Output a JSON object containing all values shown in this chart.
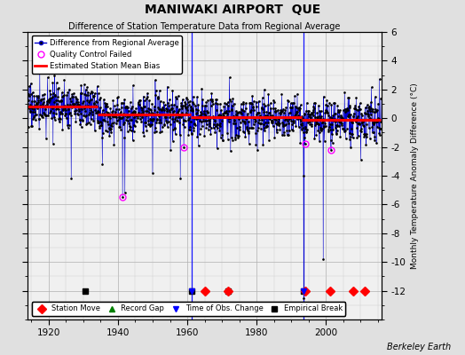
{
  "title": "MANIWAKI AIRPORT  QUE",
  "subtitle": "Difference of Station Temperature Data from Regional Average",
  "ylabel": "Monthly Temperature Anomaly Difference (°C)",
  "xlim": [
    1914,
    2016
  ],
  "ylim": [
    -14,
    6
  ],
  "yticks": [
    -12,
    -10,
    -8,
    -6,
    -4,
    -2,
    0,
    2,
    4,
    6
  ],
  "xticks": [
    1920,
    1940,
    1960,
    1980,
    2000
  ],
  "bg_color": "#e0e0e0",
  "plot_bg_color": "#f0f0f0",
  "line_color": "#0000cc",
  "bias_color": "#ff0000",
  "marker_color": "#000000",
  "qc_color": "#ff00ff",
  "station_move_color": "#ff0000",
  "record_gap_color": "#008000",
  "tobs_color": "#0000ff",
  "emp_break_color": "#000000",
  "seed": 17,
  "start_year": 1914.0,
  "end_year": 2015.9,
  "n_points": 1224,
  "bias_segments": [
    {
      "x_start": 1914.0,
      "x_end": 1934.0,
      "bias": 0.8
    },
    {
      "x_start": 1934.0,
      "x_end": 1961.0,
      "bias": 0.25
    },
    {
      "x_start": 1961.0,
      "x_end": 1993.0,
      "bias": 0.05
    },
    {
      "x_start": 1993.0,
      "x_end": 2015.9,
      "bias": -0.1
    }
  ],
  "station_moves": [
    1965.2,
    1971.8,
    1994.0,
    2001.3,
    2007.9,
    2011.2
  ],
  "empirical_breaks": [
    1930.5,
    1961.2,
    1971.8,
    1993.5
  ],
  "tobs_changes": [
    1961.2,
    1993.5
  ],
  "qc_failed_times": [
    1941.3,
    1959.0,
    1994.0,
    2001.5
  ],
  "qc_failed_values": [
    -5.5,
    -2.0,
    -1.8,
    -2.2
  ],
  "spike_times": [
    1926.5,
    1935.5,
    1942.0,
    1950.0,
    1958.0,
    1993.6,
    1999.2
  ],
  "spike_values": [
    -4.2,
    -3.2,
    -5.2,
    -3.8,
    -4.2,
    -4.0,
    -9.8
  ],
  "deep_spike_time": 1993.65,
  "deep_spike_value": -12.5,
  "berkeley_earth_text": "Berkeley Earth"
}
